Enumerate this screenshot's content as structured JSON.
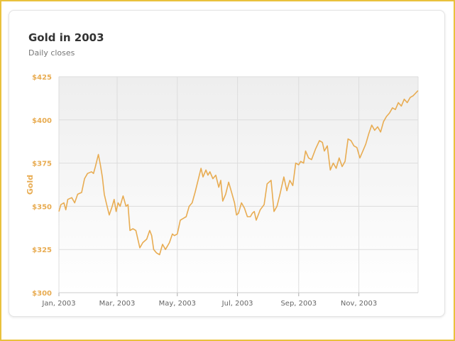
{
  "header": {
    "title": "Gold in 2003",
    "subtitle": "Daily closes"
  },
  "colors": {
    "accent": "#e8ac52",
    "frame": "#e9c13c",
    "grid": "#dddddd",
    "plot_bg_top": "#eeeeee",
    "plot_bg_bottom": "#ffffff"
  },
  "chart_data": {
    "type": "line",
    "title": "Gold in 2003",
    "subtitle": "Daily closes",
    "ylabel": "Gold",
    "xlabel": "",
    "ylim": [
      300,
      425
    ],
    "xlim": [
      "2003-01-01",
      "2003-12-31"
    ],
    "grid": true,
    "y_ticks": [
      300,
      325,
      350,
      375,
      400,
      425
    ],
    "y_tick_labels": [
      "$300",
      "$325",
      "$350",
      "$375",
      "$400",
      "$425"
    ],
    "x_ticks": [
      "2003-01-01",
      "2003-03-01",
      "2003-05-01",
      "2003-07-01",
      "2003-09-01",
      "2003-11-01"
    ],
    "x_tick_labels": [
      "Jan, 2003",
      "Mar, 2003",
      "May, 2003",
      "Jul, 2003",
      "Sep, 2003",
      "Nov, 2003"
    ],
    "series": [
      {
        "points": [
          [
            "2003-01-01",
            347
          ],
          [
            "2003-01-03",
            351
          ],
          [
            "2003-01-06",
            352
          ],
          [
            "2003-01-08",
            348
          ],
          [
            "2003-01-10",
            354
          ],
          [
            "2003-01-14",
            355
          ],
          [
            "2003-01-17",
            352
          ],
          [
            "2003-01-20",
            357
          ],
          [
            "2003-01-24",
            358
          ],
          [
            "2003-01-27",
            366
          ],
          [
            "2003-01-30",
            369
          ],
          [
            "2003-02-03",
            370
          ],
          [
            "2003-02-05",
            369
          ],
          [
            "2003-02-07",
            373
          ],
          [
            "2003-02-10",
            380
          ],
          [
            "2003-02-12",
            374
          ],
          [
            "2003-02-14",
            367
          ],
          [
            "2003-02-16",
            357
          ],
          [
            "2003-02-18",
            352
          ],
          [
            "2003-02-21",
            345
          ],
          [
            "2003-02-24",
            350
          ],
          [
            "2003-02-26",
            354
          ],
          [
            "2003-02-28",
            347
          ],
          [
            "2003-03-02",
            352
          ],
          [
            "2003-03-04",
            350
          ],
          [
            "2003-03-07",
            356
          ],
          [
            "2003-03-10",
            350
          ],
          [
            "2003-03-12",
            351
          ],
          [
            "2003-03-14",
            336
          ],
          [
            "2003-03-17",
            337
          ],
          [
            "2003-03-20",
            336
          ],
          [
            "2003-03-24",
            326
          ],
          [
            "2003-03-27",
            329
          ],
          [
            "2003-03-31",
            331
          ],
          [
            "2003-04-03",
            336
          ],
          [
            "2003-04-05",
            333
          ],
          [
            "2003-04-07",
            325
          ],
          [
            "2003-04-10",
            323
          ],
          [
            "2003-04-13",
            322
          ],
          [
            "2003-04-16",
            328
          ],
          [
            "2003-04-19",
            325
          ],
          [
            "2003-04-23",
            329
          ],
          [
            "2003-04-26",
            334
          ],
          [
            "2003-04-28",
            333
          ],
          [
            "2003-05-01",
            334
          ],
          [
            "2003-05-04",
            342
          ],
          [
            "2003-05-07",
            343
          ],
          [
            "2003-05-10",
            344
          ],
          [
            "2003-05-13",
            350
          ],
          [
            "2003-05-16",
            352
          ],
          [
            "2003-05-19",
            358
          ],
          [
            "2003-05-22",
            365
          ],
          [
            "2003-05-25",
            372
          ],
          [
            "2003-05-27",
            367
          ],
          [
            "2003-05-30",
            371
          ],
          [
            "2003-06-01",
            368
          ],
          [
            "2003-06-03",
            370
          ],
          [
            "2003-06-06",
            366
          ],
          [
            "2003-06-09",
            368
          ],
          [
            "2003-06-12",
            361
          ],
          [
            "2003-06-14",
            365
          ],
          [
            "2003-06-16",
            353
          ],
          [
            "2003-06-19",
            357
          ],
          [
            "2003-06-22",
            364
          ],
          [
            "2003-06-25",
            358
          ],
          [
            "2003-06-28",
            352
          ],
          [
            "2003-06-30",
            345
          ],
          [
            "2003-07-02",
            346
          ],
          [
            "2003-07-05",
            352
          ],
          [
            "2003-07-08",
            349
          ],
          [
            "2003-07-11",
            344
          ],
          [
            "2003-07-14",
            344
          ],
          [
            "2003-07-16",
            346
          ],
          [
            "2003-07-18",
            347
          ],
          [
            "2003-07-20",
            342
          ],
          [
            "2003-07-24",
            348
          ],
          [
            "2003-07-28",
            351
          ],
          [
            "2003-07-31",
            363
          ],
          [
            "2003-08-04",
            365
          ],
          [
            "2003-08-07",
            347
          ],
          [
            "2003-08-10",
            350
          ],
          [
            "2003-08-13",
            357
          ],
          [
            "2003-08-17",
            367
          ],
          [
            "2003-08-20",
            359
          ],
          [
            "2003-08-23",
            365
          ],
          [
            "2003-08-26",
            362
          ],
          [
            "2003-08-29",
            375
          ],
          [
            "2003-09-01",
            374
          ],
          [
            "2003-09-03",
            376
          ],
          [
            "2003-09-06",
            375
          ],
          [
            "2003-09-08",
            382
          ],
          [
            "2003-09-11",
            378
          ],
          [
            "2003-09-14",
            377
          ],
          [
            "2003-09-18",
            383
          ],
          [
            "2003-09-22",
            388
          ],
          [
            "2003-09-25",
            387
          ],
          [
            "2003-09-27",
            382
          ],
          [
            "2003-09-30",
            385
          ],
          [
            "2003-10-03",
            371
          ],
          [
            "2003-10-06",
            375
          ],
          [
            "2003-10-09",
            372
          ],
          [
            "2003-10-12",
            378
          ],
          [
            "2003-10-15",
            373
          ],
          [
            "2003-10-18",
            376
          ],
          [
            "2003-10-21",
            389
          ],
          [
            "2003-10-24",
            388
          ],
          [
            "2003-10-27",
            385
          ],
          [
            "2003-10-30",
            384
          ],
          [
            "2003-11-02",
            378
          ],
          [
            "2003-11-05",
            382
          ],
          [
            "2003-11-08",
            386
          ],
          [
            "2003-11-11",
            392
          ],
          [
            "2003-11-14",
            397
          ],
          [
            "2003-11-17",
            394
          ],
          [
            "2003-11-20",
            396
          ],
          [
            "2003-11-23",
            393
          ],
          [
            "2003-11-26",
            399
          ],
          [
            "2003-11-29",
            402
          ],
          [
            "2003-12-02",
            404
          ],
          [
            "2003-12-05",
            407
          ],
          [
            "2003-12-08",
            406
          ],
          [
            "2003-12-11",
            410
          ],
          [
            "2003-12-14",
            408
          ],
          [
            "2003-12-17",
            412
          ],
          [
            "2003-12-20",
            410
          ],
          [
            "2003-12-23",
            413
          ],
          [
            "2003-12-26",
            414
          ],
          [
            "2003-12-31",
            417
          ]
        ]
      }
    ]
  }
}
